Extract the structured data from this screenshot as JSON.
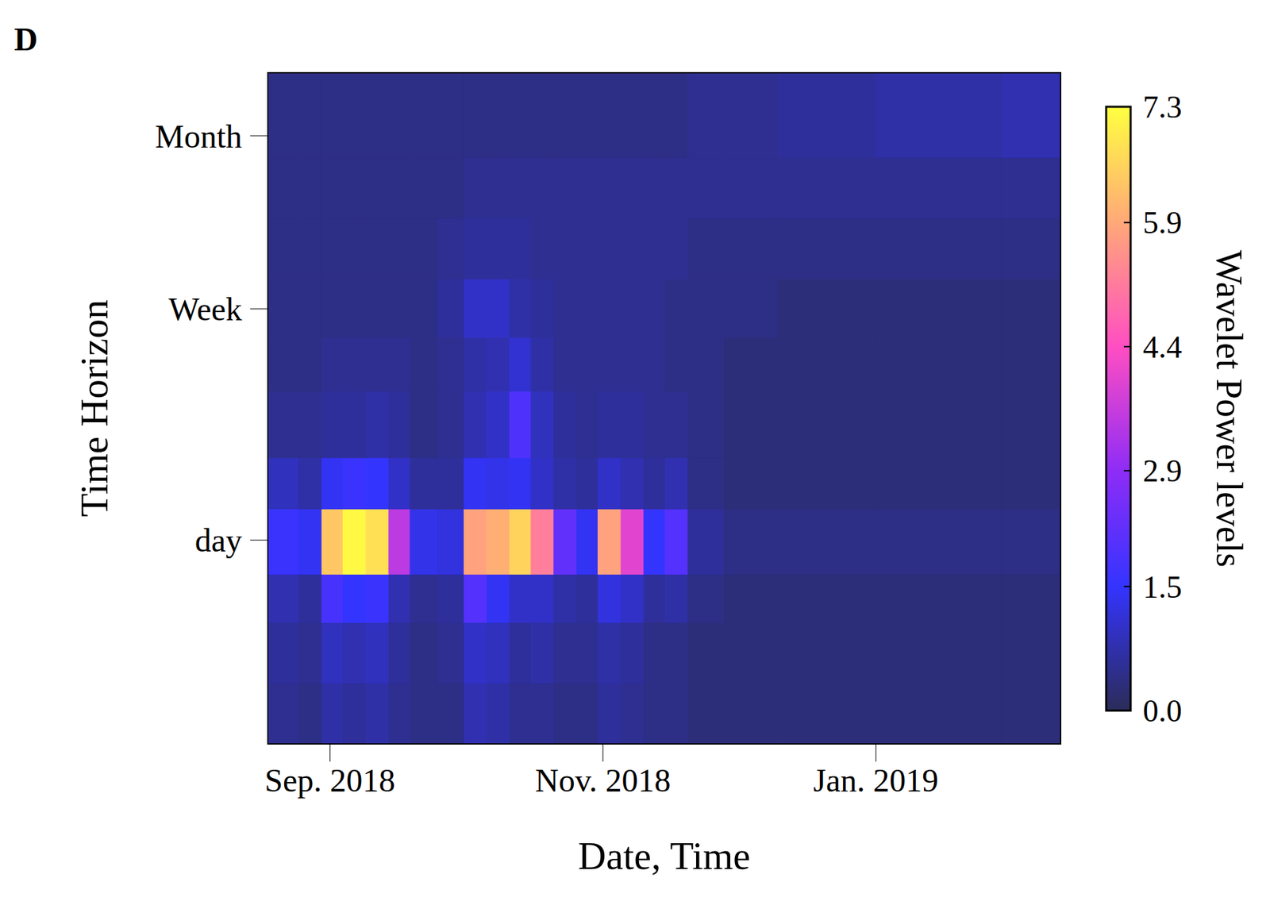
{
  "chart_data": {
    "type": "heatmap",
    "panel_label": "D",
    "x_label": "Date, Time",
    "y_label": "Time Horizon",
    "log": "y",
    "x_edges": [
      2018.628,
      2018.647,
      2018.661,
      2018.674,
      2018.688,
      2018.702,
      2018.715,
      2018.732,
      2018.748,
      2018.762,
      2018.776,
      2018.789,
      2018.803,
      2018.817,
      2018.83,
      2018.844,
      2018.858,
      2018.871,
      2018.885,
      2018.907,
      2018.94,
      2019.0,
      2019.077,
      2019.113
    ],
    "y_edges": [
      0.18,
      0.3,
      0.5,
      0.75,
      1.3,
      2,
      3.5,
      5.5,
      9,
      15,
      25,
      51
    ],
    "xlim": [
      2018.628,
      2019.113
    ],
    "ylim": [
      0.18,
      51
    ],
    "xticks": [
      {
        "value": 2018.666,
        "label": "Sep. 2018"
      },
      {
        "value": 2018.833,
        "label": "Nov. 2018"
      },
      {
        "value": 2019.0,
        "label": "Jan. 2019"
      }
    ],
    "yticks": [
      {
        "value": 1,
        "label": "day"
      },
      {
        "value": 7,
        "label": "Week"
      },
      {
        "value": 30,
        "label": "Month"
      }
    ],
    "cells": [
      [
        0.5,
        0.4,
        0.7,
        0.6,
        0.7,
        0.5,
        0.4,
        0.4,
        0.8,
        0.7,
        0.5,
        0.5,
        0.4,
        0.4,
        0.6,
        0.5,
        0.4,
        0.4,
        0.3,
        0.3,
        0.3,
        0.3,
        0.3
      ],
      [
        0.6,
        0.5,
        0.9,
        0.8,
        0.9,
        0.6,
        0.4,
        0.5,
        1.0,
        0.9,
        0.6,
        0.7,
        0.5,
        0.5,
        0.7,
        0.6,
        0.4,
        0.4,
        0.3,
        0.3,
        0.3,
        0.3,
        0.3
      ],
      [
        0.8,
        0.6,
        1.8,
        1.5,
        1.6,
        0.8,
        0.5,
        0.6,
        2.0,
        1.4,
        1.0,
        1.0,
        0.7,
        0.6,
        1.2,
        1.0,
        0.6,
        0.7,
        0.4,
        0.3,
        0.3,
        0.3,
        0.3
      ],
      [
        1.6,
        1.4,
        6.4,
        7.2,
        6.8,
        3.5,
        1.3,
        1.2,
        5.8,
        6.0,
        6.6,
        5.2,
        2.2,
        1.4,
        5.8,
        4.0,
        1.5,
        2.0,
        0.6,
        0.4,
        0.4,
        0.4,
        0.4
      ],
      [
        0.9,
        0.7,
        1.4,
        1.6,
        1.5,
        1.0,
        0.6,
        0.6,
        1.4,
        1.3,
        1.4,
        1.0,
        0.7,
        0.6,
        1.0,
        0.8,
        0.6,
        0.8,
        0.4,
        0.3,
        0.3,
        0.3,
        0.3
      ],
      [
        0.5,
        0.5,
        0.6,
        0.6,
        0.7,
        0.6,
        0.4,
        0.5,
        0.8,
        1.0,
        1.9,
        0.9,
        0.6,
        0.5,
        0.6,
        0.6,
        0.5,
        0.5,
        0.4,
        0.3,
        0.3,
        0.3,
        0.3
      ],
      [
        0.4,
        0.4,
        0.5,
        0.5,
        0.5,
        0.5,
        0.4,
        0.5,
        0.7,
        0.8,
        1.1,
        0.7,
        0.5,
        0.5,
        0.5,
        0.5,
        0.5,
        0.4,
        0.4,
        0.3,
        0.3,
        0.3,
        0.3
      ],
      [
        0.4,
        0.4,
        0.4,
        0.4,
        0.4,
        0.4,
        0.4,
        0.6,
        1.0,
        1.0,
        0.7,
        0.6,
        0.5,
        0.5,
        0.5,
        0.5,
        0.5,
        0.4,
        0.4,
        0.4,
        0.3,
        0.3,
        0.3
      ],
      [
        0.4,
        0.4,
        0.4,
        0.4,
        0.4,
        0.4,
        0.4,
        0.5,
        0.6,
        0.6,
        0.6,
        0.5,
        0.5,
        0.5,
        0.5,
        0.5,
        0.5,
        0.5,
        0.4,
        0.4,
        0.4,
        0.4,
        0.4
      ],
      [
        0.4,
        0.4,
        0.4,
        0.4,
        0.4,
        0.4,
        0.4,
        0.4,
        0.5,
        0.5,
        0.5,
        0.5,
        0.5,
        0.5,
        0.5,
        0.5,
        0.5,
        0.5,
        0.5,
        0.5,
        0.5,
        0.5,
        0.5
      ],
      [
        0.4,
        0.4,
        0.4,
        0.4,
        0.4,
        0.4,
        0.4,
        0.4,
        0.4,
        0.4,
        0.4,
        0.4,
        0.4,
        0.4,
        0.4,
        0.4,
        0.4,
        0.4,
        0.5,
        0.5,
        0.6,
        0.7,
        0.8
      ]
    ],
    "colorbar": {
      "label": "Wavelet Power levels",
      "range": [
        0,
        7.3
      ],
      "ticks": [
        {
          "value": 0,
          "label": "0.0"
        },
        1.5,
        2.9,
        4.4,
        5.9,
        7.3
      ]
    }
  }
}
